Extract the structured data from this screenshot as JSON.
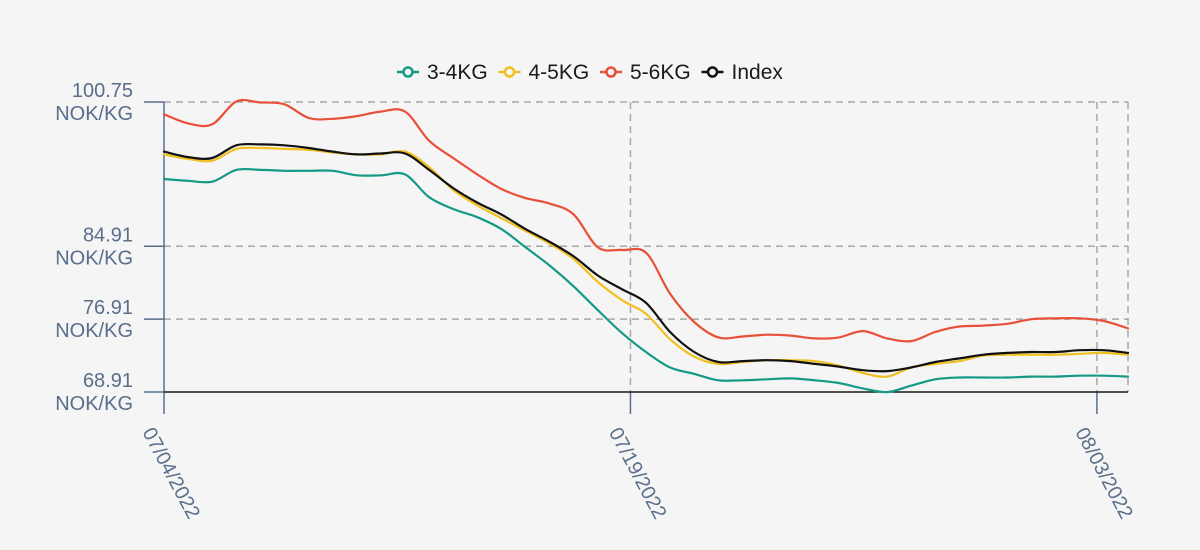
{
  "chart_data": {
    "type": "line",
    "x_ticks": [
      "07/04/2022",
      "07/19/2022",
      "08/03/2022"
    ],
    "y_ticks": [
      {
        "value": 100.75,
        "label": "100.75",
        "unit": "NOK/KG"
      },
      {
        "value": 84.91,
        "label": "84.91",
        "unit": "NOK/KG"
      },
      {
        "value": 76.91,
        "label": "76.91",
        "unit": "NOK/KG"
      },
      {
        "value": 68.91,
        "label": "68.91",
        "unit": "NOK/KG"
      }
    ],
    "ylim": [
      68.91,
      100.75
    ],
    "x_start": "07/04/2022",
    "grid": "dashed",
    "legend_position": "top-center",
    "series": [
      {
        "name": "3-4KG",
        "color": "#159a86",
        "values": [
          92.3,
          92.1,
          92.0,
          93.3,
          93.3,
          93.2,
          93.2,
          93.2,
          92.7,
          92.7,
          92.8,
          90.3,
          89.0,
          88.1,
          86.8,
          84.8,
          82.8,
          80.5,
          77.9,
          75.4,
          73.3,
          71.6,
          70.9,
          70.2,
          70.2,
          70.3,
          70.4,
          70.2,
          69.9,
          69.3,
          68.9,
          69.6,
          70.3,
          70.5,
          70.5,
          70.5,
          70.6,
          70.6,
          70.7,
          70.7,
          70.6
        ]
      },
      {
        "name": "4-5KG",
        "color": "#f0c020",
        "values": [
          95.0,
          94.5,
          94.3,
          95.6,
          95.7,
          95.6,
          95.5,
          95.2,
          95.0,
          95.0,
          95.3,
          93.6,
          91.1,
          89.4,
          88.0,
          86.6,
          85.2,
          83.5,
          81.0,
          79.0,
          77.5,
          74.7,
          72.8,
          72.0,
          72.2,
          72.4,
          72.4,
          72.3,
          71.8,
          71.0,
          70.6,
          71.6,
          72.0,
          72.3,
          72.9,
          73.0,
          73.0,
          73.0,
          73.1,
          73.2,
          73.0
        ]
      },
      {
        "name": "5-6KG",
        "color": "#e8503a",
        "values": [
          99.4,
          98.4,
          98.3,
          100.8,
          100.7,
          100.5,
          99.0,
          98.9,
          99.2,
          99.7,
          99.7,
          96.5,
          94.6,
          92.8,
          91.2,
          90.2,
          89.6,
          88.4,
          84.8,
          84.5,
          84.2,
          79.7,
          76.6,
          74.9,
          75.0,
          75.2,
          75.1,
          74.8,
          74.9,
          75.6,
          74.8,
          74.5,
          75.5,
          76.1,
          76.2,
          76.4,
          76.9,
          77.0,
          77.0,
          76.7,
          75.9
        ]
      },
      {
        "name": "Index",
        "color": "#111111",
        "values": [
          95.3,
          94.7,
          94.6,
          96.0,
          96.1,
          96.0,
          95.7,
          95.3,
          95.0,
          95.1,
          95.1,
          93.3,
          91.3,
          89.7,
          88.4,
          86.8,
          85.4,
          83.8,
          81.7,
          80.2,
          78.7,
          75.5,
          73.3,
          72.2,
          72.3,
          72.4,
          72.3,
          72.0,
          71.7,
          71.3,
          71.2,
          71.6,
          72.2,
          72.6,
          73.0,
          73.2,
          73.3,
          73.3,
          73.5,
          73.5,
          73.2
        ]
      }
    ]
  }
}
